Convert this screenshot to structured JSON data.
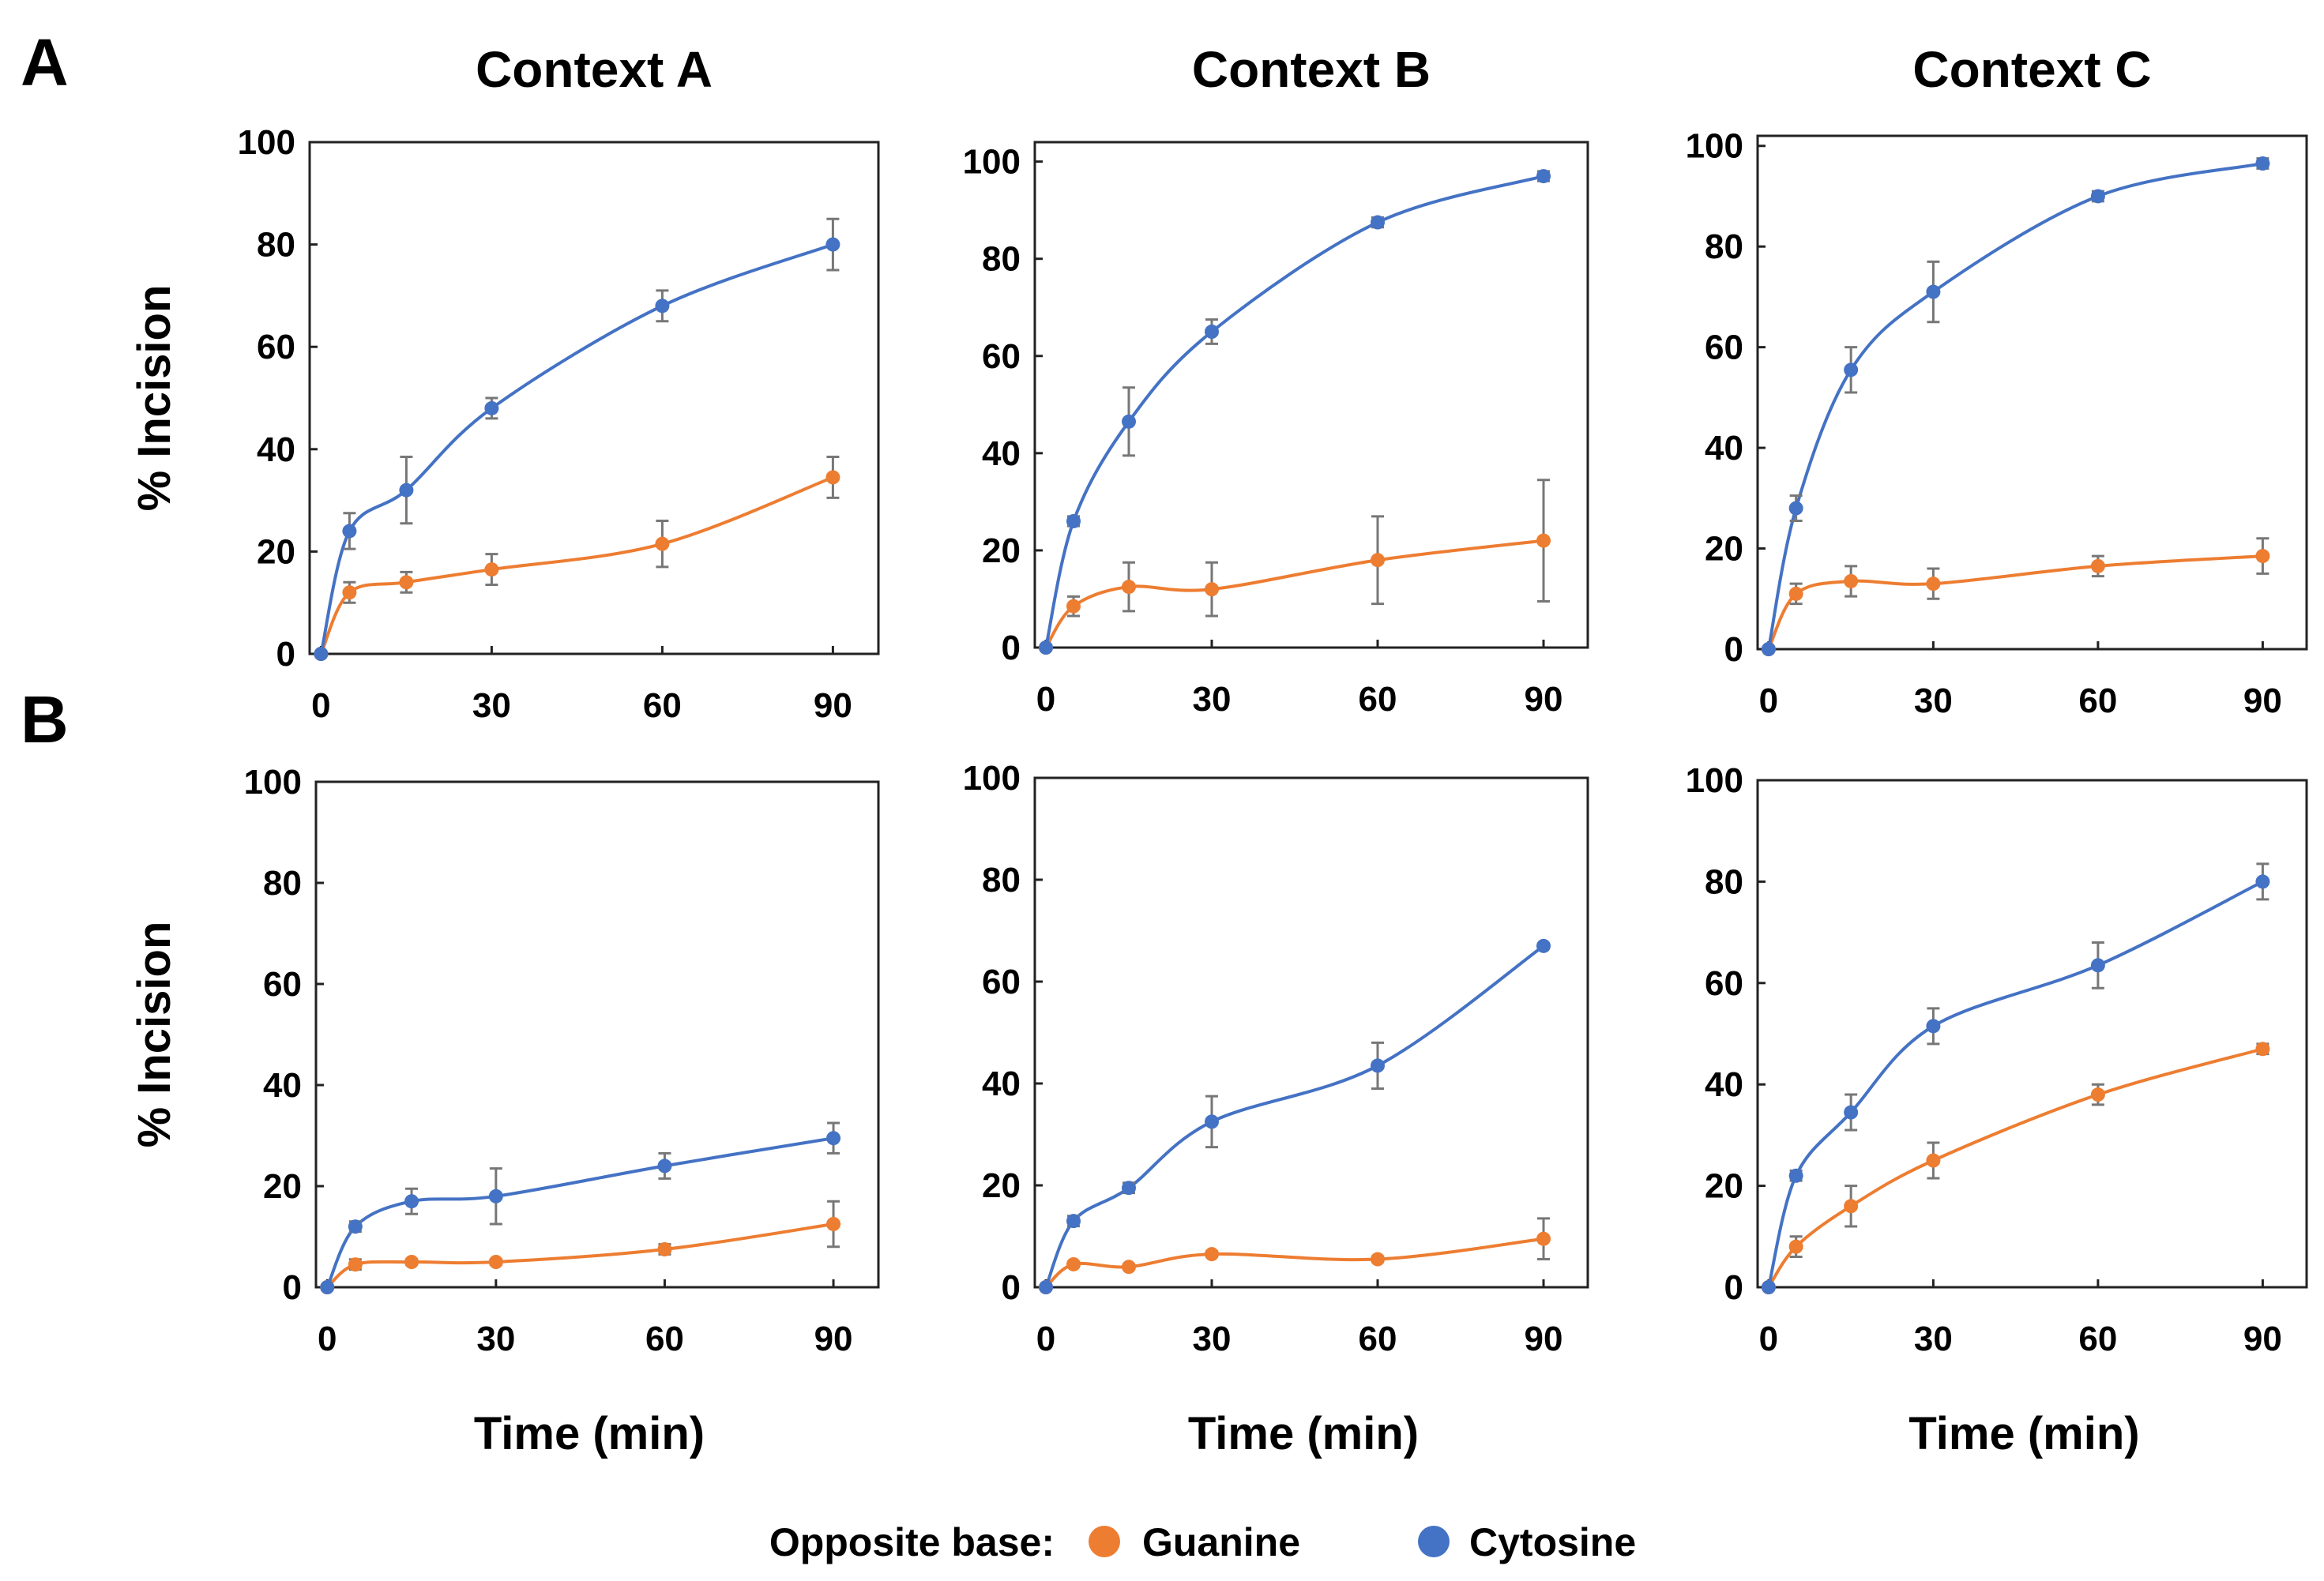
{
  "panel_labels": [
    "A",
    "B"
  ],
  "colors": {
    "guanine": "#ED7D31",
    "cytosine": "#4472C4"
  },
  "legend": {
    "title": "Opposite base:",
    "items": [
      "Guanine",
      "Cytosine"
    ]
  },
  "chart_data": [
    {
      "type": "line",
      "row": "A",
      "title": "Context A",
      "xlabel": "",
      "ylabel": "% Incision",
      "x": [
        0,
        5,
        15,
        30,
        60,
        90
      ],
      "xticks": [
        0,
        30,
        60,
        90
      ],
      "yticks": [
        0,
        20,
        40,
        60,
        80,
        100
      ],
      "xlim": [
        -2,
        98
      ],
      "ylim": [
        0,
        100
      ],
      "series": [
        {
          "name": "Guanine",
          "values": [
            0,
            12,
            14,
            16.5,
            21.5,
            34.5
          ],
          "errors": [
            0,
            2,
            2,
            3,
            4.5,
            4
          ]
        },
        {
          "name": "Cytosine",
          "values": [
            0,
            24,
            32,
            48,
            68,
            80
          ],
          "errors": [
            0,
            3.5,
            6.5,
            2,
            3,
            5
          ]
        }
      ]
    },
    {
      "type": "line",
      "row": "A",
      "title": "Context B",
      "xlabel": "",
      "ylabel": "",
      "x": [
        0,
        5,
        15,
        30,
        60,
        90
      ],
      "xticks": [
        0,
        30,
        60,
        90
      ],
      "yticks": [
        0,
        20,
        40,
        60,
        80,
        100
      ],
      "xlim": [
        -2,
        98
      ],
      "ylim": [
        0,
        104
      ],
      "series": [
        {
          "name": "Guanine",
          "values": [
            0,
            8.5,
            12.5,
            12,
            18,
            22
          ],
          "errors": [
            0,
            2,
            5,
            5.5,
            9,
            12.5
          ]
        },
        {
          "name": "Cytosine",
          "values": [
            0,
            26,
            46.5,
            65,
            87.5,
            97
          ],
          "errors": [
            0,
            1,
            7,
            2.5,
            1,
            1
          ]
        }
      ]
    },
    {
      "type": "line",
      "row": "A",
      "title": "Context C",
      "xlabel": "",
      "ylabel": "",
      "x": [
        0,
        5,
        15,
        30,
        60,
        90
      ],
      "xticks": [
        0,
        30,
        60,
        90
      ],
      "yticks": [
        0,
        20,
        40,
        60,
        80,
        100
      ],
      "xlim": [
        -2,
        98
      ],
      "ylim": [
        0,
        102
      ],
      "series": [
        {
          "name": "Guanine",
          "values": [
            0,
            11,
            13.5,
            13,
            16.5,
            18.5
          ],
          "errors": [
            0,
            2,
            3,
            3,
            2,
            3.5
          ]
        },
        {
          "name": "Cytosine",
          "values": [
            0,
            28,
            55.5,
            71,
            90,
            96.5
          ],
          "errors": [
            0,
            2.5,
            4.5,
            6,
            1,
            1
          ]
        }
      ]
    },
    {
      "type": "line",
      "row": "B",
      "title": "",
      "xlabel": "Time (min)",
      "ylabel": "% Incision",
      "x": [
        0,
        5,
        15,
        30,
        60,
        90
      ],
      "xticks": [
        0,
        30,
        60,
        90
      ],
      "yticks": [
        0,
        20,
        40,
        60,
        80,
        100
      ],
      "xlim": [
        -2,
        98
      ],
      "ylim": [
        0,
        100
      ],
      "series": [
        {
          "name": "Guanine",
          "values": [
            0,
            4.5,
            5,
            5,
            7.5,
            12.5
          ],
          "errors": [
            0,
            1,
            0.5,
            0.5,
            1,
            4.5
          ]
        },
        {
          "name": "Cytosine",
          "values": [
            0,
            12,
            17,
            18,
            24,
            29.5
          ],
          "errors": [
            0,
            1,
            2.5,
            5.5,
            2.5,
            3
          ]
        }
      ]
    },
    {
      "type": "line",
      "row": "B",
      "title": "",
      "xlabel": "Time (min)",
      "ylabel": "",
      "x": [
        0,
        5,
        15,
        30,
        60,
        90
      ],
      "xticks": [
        0,
        30,
        60,
        90
      ],
      "yticks": [
        0,
        20,
        40,
        60,
        80,
        100
      ],
      "xlim": [
        -2,
        98
      ],
      "ylim": [
        0,
        100
      ],
      "series": [
        {
          "name": "Guanine",
          "values": [
            0,
            4.5,
            4,
            6.5,
            5.5,
            9.5
          ],
          "errors": [
            0,
            0.5,
            0.5,
            0.5,
            0.5,
            4
          ]
        },
        {
          "name": "Cytosine",
          "values": [
            0,
            13,
            19.5,
            32.5,
            43.5,
            67
          ],
          "errors": [
            0,
            1,
            1,
            5,
            4.5,
            0.5
          ]
        }
      ]
    },
    {
      "type": "line",
      "row": "B",
      "title": "",
      "xlabel": "Time (min)",
      "ylabel": "",
      "x": [
        0,
        5,
        15,
        30,
        60,
        90
      ],
      "xticks": [
        0,
        30,
        60,
        90
      ],
      "yticks": [
        0,
        20,
        40,
        60,
        80,
        100
      ],
      "xlim": [
        -2,
        98
      ],
      "ylim": [
        0,
        100
      ],
      "series": [
        {
          "name": "Guanine",
          "values": [
            0,
            8,
            16,
            25,
            38,
            47
          ],
          "errors": [
            0,
            2,
            4,
            3.5,
            2,
            1
          ]
        },
        {
          "name": "Cytosine",
          "values": [
            0,
            22,
            34.5,
            51.5,
            63.5,
            80
          ],
          "errors": [
            0,
            1,
            3.5,
            3.5,
            4.5,
            3.5
          ]
        }
      ]
    }
  ]
}
